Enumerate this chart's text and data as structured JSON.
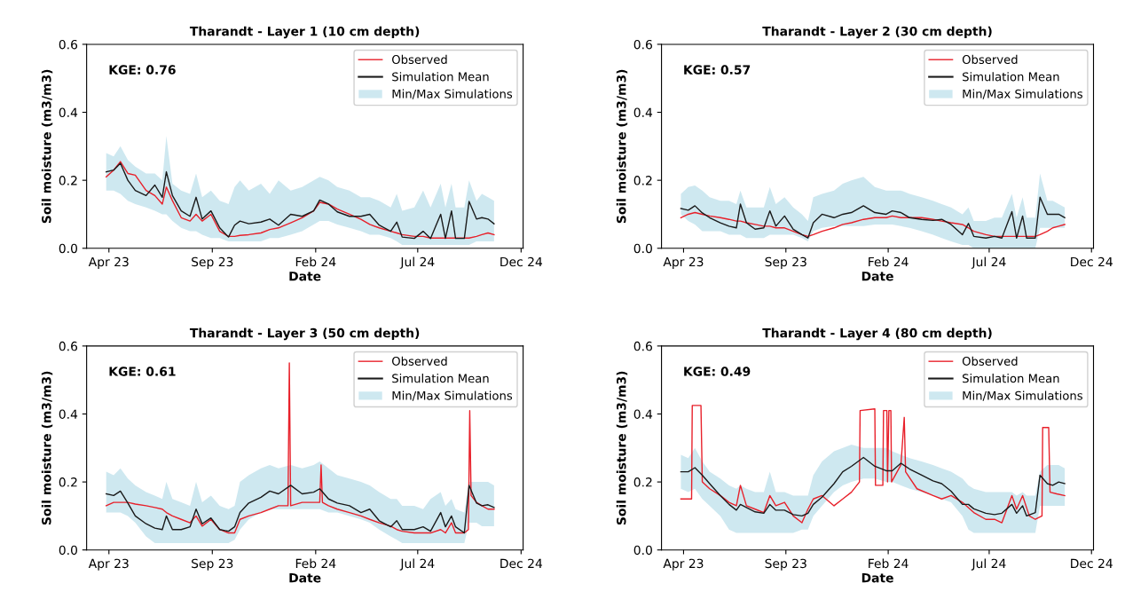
{
  "chart_data": [
    {
      "type": "line",
      "title": "Tharandt - Layer 1 (10 cm depth)",
      "xlabel": "Date",
      "ylabel": "Soil moisture (m3/m3)",
      "annotations": [
        "KGE: 0.76"
      ],
      "legend": "top right",
      "xlim": [
        "2023-02-27",
        "2024-12-04"
      ],
      "xticks": [
        {
          "value": "2023-04-01",
          "label": "Apr 23"
        },
        {
          "value": "2023-09-01",
          "label": "Sep 23"
        },
        {
          "value": "2024-02-01",
          "label": "Feb 24"
        },
        {
          "value": "2024-07-01",
          "label": "Jul 24"
        },
        {
          "value": "2024-12-01",
          "label": "Dec 24"
        }
      ],
      "ylim": [
        0,
        0.6
      ],
      "yticks": [
        {
          "value": 0,
          "label": "0.0"
        },
        {
          "value": 0.2,
          "label": "0.2"
        },
        {
          "value": 0.4,
          "label": "0.4"
        },
        {
          "value": 0.6,
          "label": "0.6"
        }
      ],
      "x": [
        "2023-03-28",
        "2023-04-08",
        "2023-04-18",
        "2023-04-29",
        "2023-05-10",
        "2023-05-26",
        "2023-06-08",
        "2023-06-19",
        "2023-06-25",
        "2023-07-04",
        "2023-07-17",
        "2023-07-30",
        "2023-08-08",
        "2023-08-17",
        "2023-08-30",
        "2023-09-12",
        "2023-09-25",
        "2023-10-04",
        "2023-10-12",
        "2023-10-25",
        "2023-11-12",
        "2023-11-25",
        "2023-12-08",
        "2023-12-26",
        "2024-01-12",
        "2024-01-29",
        "2024-02-07",
        "2024-02-20",
        "2024-03-04",
        "2024-03-22",
        "2024-04-08",
        "2024-04-21",
        "2024-05-05",
        "2024-05-22",
        "2024-05-31",
        "2024-06-08",
        "2024-06-26",
        "2024-07-09",
        "2024-07-20",
        "2024-08-04",
        "2024-08-11",
        "2024-08-20",
        "2024-08-26",
        "2024-09-08",
        "2024-09-15",
        "2024-09-26",
        "2024-10-04",
        "2024-10-13",
        "2024-10-22"
      ],
      "series": [
        {
          "name": "Observed",
          "type": "line",
          "color": "#e8202a",
          "values": [
            0.21,
            0.23,
            0.255,
            0.22,
            0.215,
            0.17,
            0.155,
            0.13,
            0.18,
            0.14,
            0.09,
            0.08,
            0.1,
            0.08,
            0.1,
            0.05,
            0.035,
            0.035,
            0.038,
            0.04,
            0.045,
            0.055,
            0.06,
            0.075,
            0.09,
            0.11,
            0.135,
            0.13,
            0.115,
            0.1,
            0.085,
            0.07,
            0.06,
            0.05,
            0.045,
            0.04,
            0.035,
            0.035,
            0.03,
            0.03,
            0.03,
            0.03,
            0.03,
            0.03,
            0.03,
            0.035,
            0.04,
            0.045,
            0.04
          ]
        },
        {
          "name": "Simulation Mean",
          "type": "line",
          "color": "#1a1a1a",
          "values": [
            0.225,
            0.23,
            0.25,
            0.2,
            0.17,
            0.155,
            0.186,
            0.15,
            0.225,
            0.155,
            0.11,
            0.094,
            0.15,
            0.086,
            0.11,
            0.06,
            0.033,
            0.068,
            0.08,
            0.072,
            0.077,
            0.086,
            0.068,
            0.1,
            0.094,
            0.11,
            0.142,
            0.13,
            0.107,
            0.094,
            0.094,
            0.1,
            0.068,
            0.05,
            0.077,
            0.033,
            0.029,
            0.05,
            0.029,
            0.1,
            0.029,
            0.11,
            0.029,
            0.029,
            0.138,
            0.086,
            0.09,
            0.086,
            0.072
          ],
          "lower": [
            0.17,
            0.17,
            0.16,
            0.14,
            0.13,
            0.12,
            0.11,
            0.1,
            0.1,
            0.08,
            0.06,
            0.05,
            0.05,
            0.04,
            0.03,
            0.03,
            0.02,
            0.02,
            0.02,
            0.02,
            0.02,
            0.03,
            0.03,
            0.04,
            0.05,
            0.07,
            0.08,
            0.08,
            0.07,
            0.06,
            0.05,
            0.04,
            0.04,
            0.03,
            0.02,
            0.01,
            0.01,
            0.01,
            0.01,
            0.01,
            0.01,
            0.01,
            0.01,
            0.01,
            0.01,
            0.02,
            0.02,
            0.02,
            0.02
          ],
          "upper": [
            0.28,
            0.27,
            0.3,
            0.26,
            0.24,
            0.22,
            0.22,
            0.2,
            0.33,
            0.19,
            0.17,
            0.16,
            0.22,
            0.15,
            0.17,
            0.14,
            0.13,
            0.18,
            0.2,
            0.17,
            0.19,
            0.16,
            0.2,
            0.17,
            0.18,
            0.2,
            0.21,
            0.2,
            0.18,
            0.17,
            0.15,
            0.15,
            0.14,
            0.12,
            0.16,
            0.11,
            0.12,
            0.17,
            0.12,
            0.19,
            0.12,
            0.19,
            0.12,
            0.12,
            0.2,
            0.14,
            0.16,
            0.15,
            0.14
          ]
        },
        {
          "name": "Min/Max Simulations",
          "type": "area",
          "color": "#add8e6",
          "values": [
            null,
            null,
            null,
            null,
            null,
            null,
            null,
            null,
            null,
            null,
            null,
            null,
            null,
            null,
            null,
            null,
            null,
            null,
            null,
            null,
            null,
            null,
            null,
            null,
            null,
            null,
            null,
            null,
            null,
            null,
            null,
            null,
            null,
            null,
            null,
            null,
            null,
            null,
            null,
            null,
            null,
            null,
            null,
            null,
            null,
            null,
            null,
            null,
            null
          ]
        }
      ]
    },
    {
      "type": "line",
      "title": "Tharandt - Layer 2 (30 cm depth)",
      "xlabel": "Date",
      "ylabel": "Soil moisture (m3/m3)",
      "annotations": [
        "KGE: 0.57"
      ],
      "legend": "top right",
      "xlim": [
        "2023-02-27",
        "2024-12-04"
      ],
      "xticks": [
        {
          "value": "2023-04-01",
          "label": "Apr 23"
        },
        {
          "value": "2023-09-01",
          "label": "Sep 23"
        },
        {
          "value": "2024-02-01",
          "label": "Feb 24"
        },
        {
          "value": "2024-07-01",
          "label": "Jul 24"
        },
        {
          "value": "2024-12-01",
          "label": "Dec 24"
        }
      ],
      "ylim": [
        0,
        0.6
      ],
      "yticks": [
        {
          "value": 0,
          "label": "0.0"
        },
        {
          "value": 0.2,
          "label": "0.2"
        },
        {
          "value": 0.4,
          "label": "0.4"
        },
        {
          "value": 0.6,
          "label": "0.6"
        }
      ],
      "x": [
        "2023-03-28",
        "2023-04-08",
        "2023-04-18",
        "2023-04-29",
        "2023-05-10",
        "2023-05-26",
        "2023-06-08",
        "2023-06-19",
        "2023-06-25",
        "2023-07-04",
        "2023-07-17",
        "2023-07-30",
        "2023-08-08",
        "2023-08-17",
        "2023-08-30",
        "2023-09-12",
        "2023-09-25",
        "2023-10-04",
        "2023-10-12",
        "2023-10-25",
        "2023-11-12",
        "2023-11-25",
        "2023-12-08",
        "2023-12-26",
        "2024-01-12",
        "2024-01-29",
        "2024-02-07",
        "2024-02-20",
        "2024-03-04",
        "2024-03-22",
        "2024-04-08",
        "2024-04-21",
        "2024-05-05",
        "2024-05-22",
        "2024-05-31",
        "2024-06-08",
        "2024-06-26",
        "2024-07-09",
        "2024-07-20",
        "2024-08-04",
        "2024-08-11",
        "2024-08-20",
        "2024-08-26",
        "2024-09-08",
        "2024-09-15",
        "2024-09-26",
        "2024-10-04",
        "2024-10-13",
        "2024-10-22"
      ],
      "series": [
        {
          "name": "Observed",
          "type": "line",
          "color": "#e8202a",
          "values": [
            0.09,
            0.1,
            0.105,
            0.1,
            0.095,
            0.09,
            0.085,
            0.08,
            0.08,
            0.075,
            0.07,
            0.065,
            0.065,
            0.06,
            0.06,
            0.05,
            0.04,
            0.035,
            0.04,
            0.05,
            0.06,
            0.07,
            0.075,
            0.085,
            0.09,
            0.09,
            0.095,
            0.09,
            0.09,
            0.09,
            0.085,
            0.08,
            0.075,
            0.07,
            0.06,
            0.05,
            0.04,
            0.035,
            0.035,
            0.035,
            0.035,
            0.035,
            0.035,
            0.035,
            0.04,
            0.05,
            0.06,
            0.065,
            0.07
          ]
        },
        {
          "name": "Simulation Mean",
          "type": "line",
          "color": "#1a1a1a",
          "values": [
            0.117,
            0.112,
            0.125,
            0.104,
            0.09,
            0.075,
            0.065,
            0.06,
            0.13,
            0.075,
            0.056,
            0.06,
            0.11,
            0.065,
            0.095,
            0.056,
            0.04,
            0.03,
            0.075,
            0.1,
            0.09,
            0.1,
            0.105,
            0.125,
            0.105,
            0.1,
            0.11,
            0.105,
            0.09,
            0.085,
            0.082,
            0.085,
            0.07,
            0.04,
            0.073,
            0.035,
            0.03,
            0.035,
            0.03,
            0.108,
            0.03,
            0.095,
            0.03,
            0.03,
            0.15,
            0.1,
            0.1,
            0.1,
            0.09
          ],
          "lower": [
            0.1,
            0.08,
            0.07,
            0.05,
            0.05,
            0.05,
            0.04,
            0.04,
            0.04,
            0.03,
            0.03,
            0.03,
            0.04,
            0.04,
            0.04,
            0.04,
            0.03,
            0.02,
            0.05,
            0.06,
            0.065,
            0.065,
            0.065,
            0.065,
            0.07,
            0.07,
            0.07,
            0.065,
            0.06,
            0.05,
            0.04,
            0.03,
            0.02,
            0.01,
            0.01,
            0.0,
            0.0,
            0.0,
            0.0,
            0.0,
            0.0,
            0.0,
            0.0,
            0.0,
            0.06,
            0.06,
            0.06,
            0.06,
            0.06
          ],
          "upper": [
            0.16,
            0.18,
            0.185,
            0.17,
            0.15,
            0.14,
            0.14,
            0.13,
            0.17,
            0.12,
            0.12,
            0.12,
            0.18,
            0.13,
            0.15,
            0.12,
            0.1,
            0.08,
            0.15,
            0.16,
            0.17,
            0.19,
            0.2,
            0.21,
            0.18,
            0.17,
            0.17,
            0.17,
            0.16,
            0.15,
            0.14,
            0.13,
            0.12,
            0.1,
            0.12,
            0.08,
            0.08,
            0.09,
            0.09,
            0.16,
            0.09,
            0.15,
            0.09,
            0.09,
            0.22,
            0.14,
            0.14,
            0.13,
            0.12
          ]
        },
        {
          "name": "Min/Max Simulations",
          "type": "area",
          "color": "#add8e6",
          "values": [
            null,
            null,
            null,
            null,
            null,
            null,
            null,
            null,
            null,
            null,
            null,
            null,
            null,
            null,
            null,
            null,
            null,
            null,
            null,
            null,
            null,
            null,
            null,
            null,
            null,
            null,
            null,
            null,
            null,
            null,
            null,
            null,
            null,
            null,
            null,
            null,
            null,
            null,
            null,
            null,
            null,
            null,
            null,
            null,
            null,
            null,
            null,
            null,
            null
          ]
        }
      ]
    },
    {
      "type": "line",
      "title": "Tharandt - Layer 3 (50 cm depth)",
      "xlabel": "Date",
      "ylabel": "Soil moisture (m3/m3)",
      "annotations": [
        "KGE: 0.61"
      ],
      "legend": "top right",
      "xlim": [
        "2023-02-27",
        "2024-12-04"
      ],
      "xticks": [
        {
          "value": "2023-04-01",
          "label": "Apr 23"
        },
        {
          "value": "2023-09-01",
          "label": "Sep 23"
        },
        {
          "value": "2024-02-01",
          "label": "Feb 24"
        },
        {
          "value": "2024-07-01",
          "label": "Jul 24"
        },
        {
          "value": "2024-12-01",
          "label": "Dec 24"
        }
      ],
      "ylim": [
        0,
        0.6
      ],
      "yticks": [
        {
          "value": 0,
          "label": "0.0"
        },
        {
          "value": 0.2,
          "label": "0.2"
        },
        {
          "value": 0.4,
          "label": "0.4"
        },
        {
          "value": 0.6,
          "label": "0.6"
        }
      ],
      "x": [
        "2023-03-28",
        "2023-04-08",
        "2023-04-18",
        "2023-04-29",
        "2023-05-10",
        "2023-05-26",
        "2023-06-08",
        "2023-06-19",
        "2023-06-25",
        "2023-07-04",
        "2023-07-17",
        "2023-07-30",
        "2023-08-08",
        "2023-08-17",
        "2023-08-30",
        "2023-09-12",
        "2023-09-25",
        "2023-10-04",
        "2023-10-12",
        "2023-10-25",
        "2023-11-12",
        "2023-11-25",
        "2023-12-08",
        "2023-12-26",
        "2024-01-12",
        "2024-01-29",
        "2024-02-07",
        "2024-02-20",
        "2024-03-04",
        "2024-03-22",
        "2024-04-08",
        "2024-04-21",
        "2024-05-05",
        "2024-05-22",
        "2024-05-31",
        "2024-06-08",
        "2024-06-26",
        "2024-07-09",
        "2024-07-20",
        "2024-08-04",
        "2024-08-11",
        "2024-08-20",
        "2024-08-26",
        "2024-09-08",
        "2024-09-15",
        "2024-09-26",
        "2024-10-04",
        "2024-10-13",
        "2024-10-22"
      ],
      "series": [
        {
          "name": "Observed",
          "type": "line",
          "color": "#e8202a",
          "x": [
            "2023-03-28",
            "2023-04-08",
            "2023-04-18",
            "2023-04-29",
            "2023-05-10",
            "2023-05-26",
            "2023-06-08",
            "2023-06-19",
            "2023-06-25",
            "2023-07-04",
            "2023-07-17",
            "2023-07-30",
            "2023-08-08",
            "2023-08-17",
            "2023-08-30",
            "2023-09-12",
            "2023-09-25",
            "2023-10-04",
            "2023-10-12",
            "2023-10-25",
            "2023-11-12",
            "2023-11-25",
            "2023-12-08",
            "2023-12-22",
            "2023-12-24",
            "2023-12-26",
            "2024-01-12",
            "2024-01-29",
            "2024-02-07",
            "2024-02-09",
            "2024-02-11",
            "2024-02-20",
            "2024-03-04",
            "2024-03-22",
            "2024-04-08",
            "2024-04-21",
            "2024-05-05",
            "2024-05-22",
            "2024-05-31",
            "2024-06-08",
            "2024-06-26",
            "2024-07-09",
            "2024-07-20",
            "2024-08-04",
            "2024-08-11",
            "2024-08-20",
            "2024-08-26",
            "2024-09-08",
            "2024-09-14",
            "2024-09-16",
            "2024-09-18",
            "2024-09-26",
            "2024-10-04",
            "2024-10-13",
            "2024-10-22"
          ],
          "values": [
            0.13,
            0.14,
            0.14,
            0.14,
            0.135,
            0.13,
            0.125,
            0.12,
            0.11,
            0.1,
            0.09,
            0.08,
            0.1,
            0.07,
            0.09,
            0.06,
            0.05,
            0.05,
            0.09,
            0.1,
            0.11,
            0.12,
            0.13,
            0.13,
            0.55,
            0.13,
            0.14,
            0.14,
            0.14,
            0.25,
            0.14,
            0.13,
            0.12,
            0.11,
            0.1,
            0.09,
            0.08,
            0.07,
            0.06,
            0.055,
            0.05,
            0.05,
            0.05,
            0.06,
            0.05,
            0.08,
            0.05,
            0.05,
            0.06,
            0.41,
            0.16,
            0.14,
            0.13,
            0.12,
            0.12
          ]
        },
        {
          "name": "Simulation Mean",
          "type": "line",
          "color": "#1a1a1a",
          "values": [
            0.165,
            0.16,
            0.173,
            0.138,
            0.1,
            0.077,
            0.064,
            0.06,
            0.1,
            0.06,
            0.06,
            0.068,
            0.12,
            0.077,
            0.094,
            0.06,
            0.055,
            0.068,
            0.11,
            0.138,
            0.155,
            0.173,
            0.165,
            0.19,
            0.165,
            0.17,
            0.18,
            0.15,
            0.138,
            0.13,
            0.11,
            0.12,
            0.086,
            0.068,
            0.086,
            0.06,
            0.06,
            0.068,
            0.055,
            0.11,
            0.068,
            0.1,
            0.068,
            0.05,
            0.19,
            0.138,
            0.13,
            0.133,
            0.125
          ],
          "lower": [
            0.11,
            0.11,
            0.11,
            0.1,
            0.08,
            0.04,
            0.02,
            0.02,
            0.02,
            0.02,
            0.02,
            0.02,
            0.02,
            0.02,
            0.02,
            0.02,
            0.02,
            0.03,
            0.06,
            0.09,
            0.11,
            0.12,
            0.12,
            0.12,
            0.12,
            0.12,
            0.12,
            0.11,
            0.11,
            0.1,
            0.09,
            0.08,
            0.06,
            0.04,
            0.03,
            0.02,
            0.02,
            0.02,
            0.02,
            0.02,
            0.02,
            0.02,
            0.02,
            0.02,
            0.08,
            0.08,
            0.07,
            0.07,
            0.07
          ],
          "upper": [
            0.23,
            0.22,
            0.24,
            0.21,
            0.19,
            0.17,
            0.16,
            0.15,
            0.2,
            0.15,
            0.14,
            0.13,
            0.2,
            0.14,
            0.16,
            0.13,
            0.12,
            0.13,
            0.2,
            0.22,
            0.24,
            0.25,
            0.24,
            0.25,
            0.24,
            0.25,
            0.26,
            0.24,
            0.22,
            0.21,
            0.2,
            0.19,
            0.17,
            0.15,
            0.15,
            0.13,
            0.13,
            0.12,
            0.15,
            0.17,
            0.13,
            0.15,
            0.12,
            0.11,
            0.2,
            0.2,
            0.2,
            0.2,
            0.19
          ]
        },
        {
          "name": "Min/Max Simulations",
          "type": "area",
          "color": "#add8e6",
          "values": [
            null,
            null,
            null,
            null,
            null,
            null,
            null,
            null,
            null,
            null,
            null,
            null,
            null,
            null,
            null,
            null,
            null,
            null,
            null,
            null,
            null,
            null,
            null,
            null,
            null,
            null,
            null,
            null,
            null,
            null,
            null,
            null,
            null,
            null,
            null,
            null,
            null,
            null,
            null,
            null,
            null,
            null,
            null,
            null,
            null,
            null,
            null,
            null,
            null
          ]
        }
      ]
    },
    {
      "type": "line",
      "title": "Tharandt - Layer 4 (80 cm depth)",
      "xlabel": "Date",
      "ylabel": "Soil moisture (m3/m3)",
      "annotations": [
        "KGE: 0.49"
      ],
      "legend": "top right",
      "xlim": [
        "2023-02-27",
        "2024-12-04"
      ],
      "xticks": [
        {
          "value": "2023-04-01",
          "label": "Apr 23"
        },
        {
          "value": "2023-09-01",
          "label": "Sep 23"
        },
        {
          "value": "2024-02-01",
          "label": "Feb 24"
        },
        {
          "value": "2024-07-01",
          "label": "Jul 24"
        },
        {
          "value": "2024-12-01",
          "label": "Dec 24"
        }
      ],
      "ylim": [
        0,
        0.6
      ],
      "yticks": [
        {
          "value": 0,
          "label": "0.0"
        },
        {
          "value": 0.2,
          "label": "0.2"
        },
        {
          "value": 0.4,
          "label": "0.4"
        },
        {
          "value": 0.6,
          "label": "0.6"
        }
      ],
      "x": [
        "2023-03-28",
        "2023-04-08",
        "2023-04-18",
        "2023-04-29",
        "2023-05-10",
        "2023-05-26",
        "2023-06-08",
        "2023-06-19",
        "2023-06-25",
        "2023-07-04",
        "2023-07-17",
        "2023-07-30",
        "2023-08-08",
        "2023-08-17",
        "2023-08-30",
        "2023-09-12",
        "2023-09-25",
        "2023-10-04",
        "2023-10-12",
        "2023-10-25",
        "2023-11-12",
        "2023-11-25",
        "2023-12-08",
        "2023-12-26",
        "2024-01-12",
        "2024-01-29",
        "2024-02-07",
        "2024-02-20",
        "2024-03-04",
        "2024-03-22",
        "2024-04-08",
        "2024-04-21",
        "2024-05-05",
        "2024-05-22",
        "2024-05-31",
        "2024-06-08",
        "2024-06-26",
        "2024-07-09",
        "2024-07-20",
        "2024-08-04",
        "2024-08-11",
        "2024-08-20",
        "2024-08-26",
        "2024-09-08",
        "2024-09-15",
        "2024-09-26",
        "2024-10-04",
        "2024-10-13",
        "2024-10-22"
      ],
      "series": [
        {
          "name": "Observed",
          "type": "line",
          "color": "#e8202a",
          "x": [
            "2023-03-28",
            "2023-04-13",
            "2023-04-14",
            "2023-04-27",
            "2023-04-29",
            "2023-05-10",
            "2023-05-26",
            "2023-06-08",
            "2023-06-19",
            "2023-06-25",
            "2023-07-04",
            "2023-07-17",
            "2023-07-30",
            "2023-08-08",
            "2023-08-17",
            "2023-08-30",
            "2023-09-12",
            "2023-09-25",
            "2023-10-04",
            "2023-10-12",
            "2023-10-25",
            "2023-11-12",
            "2023-11-25",
            "2023-12-08",
            "2023-12-20",
            "2023-12-21",
            "2024-01-12",
            "2024-01-13",
            "2024-01-24",
            "2024-01-25",
            "2024-01-30",
            "2024-01-31",
            "2024-02-02",
            "2024-02-05",
            "2024-02-06",
            "2024-02-20",
            "2024-02-25",
            "2024-02-27",
            "2024-03-15",
            "2024-04-08",
            "2024-04-21",
            "2024-05-05",
            "2024-05-22",
            "2024-06-08",
            "2024-06-26",
            "2024-07-09",
            "2024-07-20",
            "2024-08-04",
            "2024-08-11",
            "2024-08-20",
            "2024-08-30",
            "2024-09-08",
            "2024-09-18",
            "2024-09-19",
            "2024-09-28",
            "2024-09-30",
            "2024-10-10",
            "2024-10-22"
          ],
          "values": [
            0.15,
            0.15,
            0.425,
            0.425,
            0.2,
            0.18,
            0.16,
            0.14,
            0.13,
            0.19,
            0.13,
            0.12,
            0.11,
            0.16,
            0.13,
            0.14,
            0.1,
            0.08,
            0.12,
            0.15,
            0.16,
            0.13,
            0.15,
            0.17,
            0.2,
            0.41,
            0.415,
            0.19,
            0.19,
            0.41,
            0.41,
            0.2,
            0.41,
            0.41,
            0.2,
            0.25,
            0.39,
            0.23,
            0.18,
            0.16,
            0.15,
            0.16,
            0.14,
            0.11,
            0.09,
            0.09,
            0.08,
            0.16,
            0.12,
            0.16,
            0.1,
            0.09,
            0.1,
            0.36,
            0.36,
            0.17,
            0.165,
            0.16
          ]
        },
        {
          "name": "Simulation Mean",
          "type": "line",
          "color": "#1a1a1a",
          "values": [
            0.23,
            0.23,
            0.242,
            0.22,
            0.195,
            0.16,
            0.134,
            0.117,
            0.134,
            0.125,
            0.112,
            0.108,
            0.134,
            0.117,
            0.117,
            0.104,
            0.1,
            0.108,
            0.134,
            0.155,
            0.195,
            0.23,
            0.246,
            0.272,
            0.246,
            0.233,
            0.233,
            0.255,
            0.238,
            0.22,
            0.203,
            0.195,
            0.173,
            0.134,
            0.134,
            0.121,
            0.108,
            0.104,
            0.108,
            0.134,
            0.108,
            0.13,
            0.1,
            0.11,
            0.22,
            0.195,
            0.19,
            0.2,
            0.195
          ],
          "lower": [
            0.18,
            0.17,
            0.18,
            0.15,
            0.13,
            0.1,
            0.06,
            0.05,
            0.05,
            0.05,
            0.05,
            0.05,
            0.05,
            0.05,
            0.05,
            0.05,
            0.06,
            0.06,
            0.1,
            0.13,
            0.17,
            0.19,
            0.2,
            0.21,
            0.21,
            0.2,
            0.2,
            0.19,
            0.18,
            0.17,
            0.16,
            0.15,
            0.14,
            0.1,
            0.06,
            0.05,
            0.05,
            0.05,
            0.05,
            0.05,
            0.05,
            0.05,
            0.05,
            0.05,
            0.13,
            0.13,
            0.13,
            0.13,
            0.13
          ],
          "upper": [
            0.28,
            0.27,
            0.3,
            0.26,
            0.23,
            0.21,
            0.19,
            0.18,
            0.19,
            0.18,
            0.17,
            0.17,
            0.23,
            0.17,
            0.17,
            0.16,
            0.16,
            0.16,
            0.22,
            0.26,
            0.29,
            0.3,
            0.31,
            0.3,
            0.3,
            0.3,
            0.29,
            0.28,
            0.27,
            0.26,
            0.25,
            0.24,
            0.23,
            0.21,
            0.19,
            0.18,
            0.17,
            0.17,
            0.17,
            0.17,
            0.16,
            0.17,
            0.16,
            0.16,
            0.23,
            0.25,
            0.25,
            0.25,
            0.24
          ]
        },
        {
          "name": "Min/Max Simulations",
          "type": "area",
          "color": "#add8e6",
          "values": [
            null,
            null,
            null,
            null,
            null,
            null,
            null,
            null,
            null,
            null,
            null,
            null,
            null,
            null,
            null,
            null,
            null,
            null,
            null,
            null,
            null,
            null,
            null,
            null,
            null,
            null,
            null,
            null,
            null,
            null,
            null,
            null,
            null,
            null,
            null,
            null,
            null,
            null,
            null,
            null,
            null,
            null,
            null,
            null,
            null,
            null,
            null,
            null,
            null
          ]
        }
      ]
    }
  ]
}
